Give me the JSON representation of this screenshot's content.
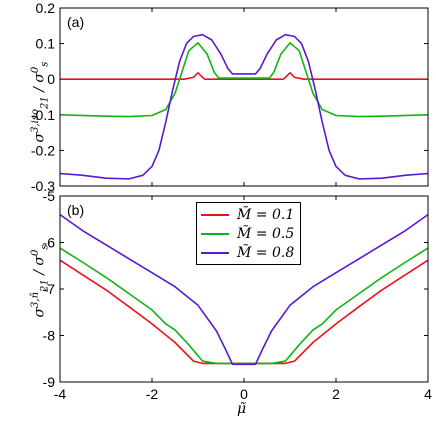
{
  "chart_data": [
    {
      "type": "line",
      "panel_label": "(a)",
      "ylabel": {
        "main": "σ",
        "sup": "3,iso",
        "sub": "21",
        "den_main": "σ",
        "den_sup": "0",
        "den_sub": "s"
      },
      "xlim": [
        -4,
        4
      ],
      "ylim": [
        -0.3,
        0.2
      ],
      "yticks": [
        0.2,
        0.1,
        0,
        -0.1,
        -0.2,
        -0.3
      ],
      "ytick_labels": [
        "0.2",
        "0.1",
        "0",
        "-0.1",
        "-0.2",
        "-0.3"
      ],
      "series": [
        {
          "color": "#e8141c",
          "x": [
            -4,
            -2,
            -1.3,
            -1.1,
            -1.0,
            -0.9,
            -0.85,
            0,
            0.85,
            0.9,
            1.0,
            1.1,
            1.3,
            2,
            4
          ],
          "y": [
            0,
            0,
            0,
            0.005,
            0.018,
            0.005,
            0,
            0,
            0,
            0.005,
            0.018,
            0.005,
            0,
            0,
            0
          ]
        },
        {
          "color": "#13b313",
          "x": [
            -4,
            -3,
            -2.5,
            -2,
            -1.7,
            -1.5,
            -1.35,
            -1.2,
            -1.0,
            -0.8,
            -0.65,
            -0.55,
            0,
            0.55,
            0.65,
            0.8,
            1.0,
            1.2,
            1.35,
            1.5,
            1.7,
            2,
            2.5,
            3,
            4
          ],
          "y": [
            -0.1,
            -0.104,
            -0.105,
            -0.102,
            -0.085,
            -0.04,
            0.02,
            0.08,
            0.102,
            0.07,
            0.02,
            0.003,
            0.003,
            0.003,
            0.02,
            0.07,
            0.102,
            0.08,
            0.02,
            -0.04,
            -0.085,
            -0.102,
            -0.105,
            -0.104,
            -0.1
          ]
        },
        {
          "color": "#5b18d2",
          "x": [
            -4,
            -3.5,
            -3,
            -2.5,
            -2.2,
            -2,
            -1.85,
            -1.7,
            -1.55,
            -1.4,
            -1.25,
            -1.1,
            -0.9,
            -0.7,
            -0.5,
            -0.35,
            -0.25,
            0,
            0.25,
            0.35,
            0.5,
            0.7,
            0.9,
            1.1,
            1.25,
            1.4,
            1.55,
            1.7,
            1.85,
            2,
            2.2,
            2.5,
            3,
            3.5,
            4
          ],
          "y": [
            -0.265,
            -0.27,
            -0.278,
            -0.28,
            -0.27,
            -0.245,
            -0.2,
            -0.12,
            -0.03,
            0.05,
            0.1,
            0.12,
            0.125,
            0.11,
            0.07,
            0.03,
            0.015,
            0.015,
            0.015,
            0.03,
            0.07,
            0.11,
            0.125,
            0.12,
            0.1,
            0.05,
            -0.03,
            -0.12,
            -0.2,
            -0.245,
            -0.27,
            -0.28,
            -0.278,
            -0.27,
            -0.265
          ]
        }
      ]
    },
    {
      "type": "line",
      "panel_label": "(b)",
      "ylabel": {
        "main": "σ",
        "sup": "3,n̂",
        "sub": "21",
        "den_main": "σ",
        "den_sup": "0",
        "den_sub": "s"
      },
      "xlabel": "μ̃",
      "xlim": [
        -4,
        4
      ],
      "ylim": [
        -9,
        -5
      ],
      "yticks": [
        -5,
        -6,
        -7,
        -8,
        -9
      ],
      "ytick_labels": [
        "-5",
        "-6",
        "-7",
        "-8",
        "-9"
      ],
      "xticks": [
        -4,
        -2,
        0,
        2,
        4
      ],
      "xtick_labels": [
        "-4",
        "-2",
        "0",
        "2",
        "4"
      ],
      "legend_position": "top-center",
      "series": [
        {
          "name": "M̃ = 0.1",
          "color": "#e8141c",
          "x": [
            -4,
            -3.5,
            -3,
            -2.5,
            -2,
            -1.5,
            -1.1,
            -0.9,
            0,
            0.9,
            1.1,
            1.5,
            2,
            2.5,
            3,
            3.5,
            4
          ],
          "y": [
            -6.38,
            -6.7,
            -7.02,
            -7.38,
            -7.75,
            -8.15,
            -8.55,
            -8.6,
            -8.6,
            -8.6,
            -8.55,
            -8.15,
            -7.75,
            -7.38,
            -7.02,
            -6.7,
            -6.38
          ]
        },
        {
          "name": "M̃ = 0.5",
          "color": "#13b313",
          "x": [
            -4,
            -3.5,
            -3,
            -2.5,
            -2,
            -1.7,
            -1.5,
            -1.2,
            -0.9,
            -0.6,
            -0.4,
            0,
            0.4,
            0.6,
            0.9,
            1.2,
            1.5,
            1.7,
            2,
            2.5,
            3,
            3.5,
            4
          ],
          "y": [
            -6.12,
            -6.43,
            -6.75,
            -7.1,
            -7.45,
            -7.75,
            -7.88,
            -8.2,
            -8.55,
            -8.6,
            -8.6,
            -8.6,
            -8.6,
            -8.6,
            -8.55,
            -8.2,
            -7.88,
            -7.75,
            -7.45,
            -7.1,
            -6.75,
            -6.43,
            -6.12
          ]
        },
        {
          "name": "M̃ = 0.8",
          "color": "#5b18d2",
          "x": [
            -4,
            -3.5,
            -3,
            -2.5,
            -2,
            -1.5,
            -1.0,
            -0.6,
            -0.4,
            -0.25,
            0,
            0.25,
            0.4,
            0.6,
            1.0,
            1.5,
            2,
            2.5,
            3,
            3.5,
            4
          ],
          "y": [
            -5.4,
            -5.75,
            -6.05,
            -6.35,
            -6.65,
            -6.95,
            -7.35,
            -7.9,
            -8.3,
            -8.62,
            -8.62,
            -8.62,
            -8.3,
            -7.9,
            -7.35,
            -6.95,
            -6.65,
            -6.35,
            -6.05,
            -5.75,
            -5.4
          ]
        }
      ]
    }
  ]
}
